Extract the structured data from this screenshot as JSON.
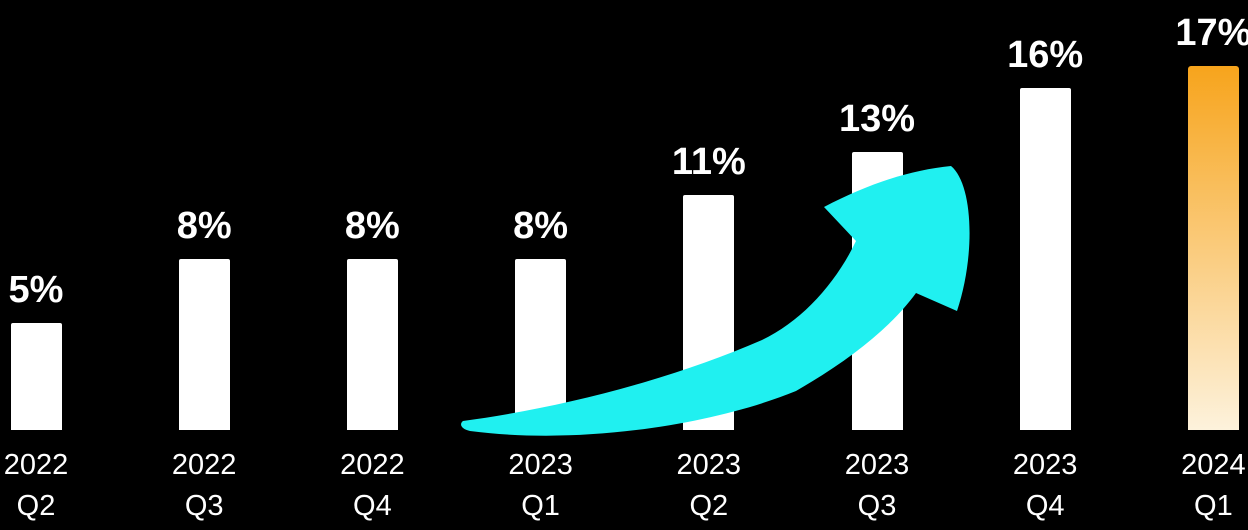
{
  "chart_data": {
    "type": "bar",
    "categories": [
      "2022 Q2",
      "2022 Q3",
      "2022 Q4",
      "2023 Q1",
      "2023 Q2",
      "2023 Q3",
      "2023 Q4",
      "2024 Q1"
    ],
    "category_lines": [
      {
        "year": "2022",
        "quarter": "Q2"
      },
      {
        "year": "2022",
        "quarter": "Q3"
      },
      {
        "year": "2022",
        "quarter": "Q4"
      },
      {
        "year": "2023",
        "quarter": "Q1"
      },
      {
        "year": "2023",
        "quarter": "Q2"
      },
      {
        "year": "2023",
        "quarter": "Q3"
      },
      {
        "year": "2023",
        "quarter": "Q4"
      },
      {
        "year": "2024",
        "quarter": "Q1"
      }
    ],
    "values": [
      5,
      8,
      8,
      8,
      11,
      13,
      16,
      17
    ],
    "labels": [
      "5%",
      "8%",
      "8%",
      "8%",
      "11%",
      "13%",
      "16%",
      "17%"
    ],
    "unit": "%",
    "ylim": [
      0,
      18
    ],
    "grid": false,
    "legend": null,
    "axes_visible": false,
    "highlight_index": 7,
    "annotations": [
      {
        "name": "trend-arrow",
        "description": "upward curved swoosh arrow over 2023 bars",
        "color": "#20f0f0"
      }
    ],
    "colors": {
      "background": "#000000",
      "bar": "#ffffff",
      "highlight_top": "#f7a41c",
      "highlight_bottom": "#fdf2dc",
      "arrow": "#20f0f0",
      "label": "#ffffff"
    }
  }
}
